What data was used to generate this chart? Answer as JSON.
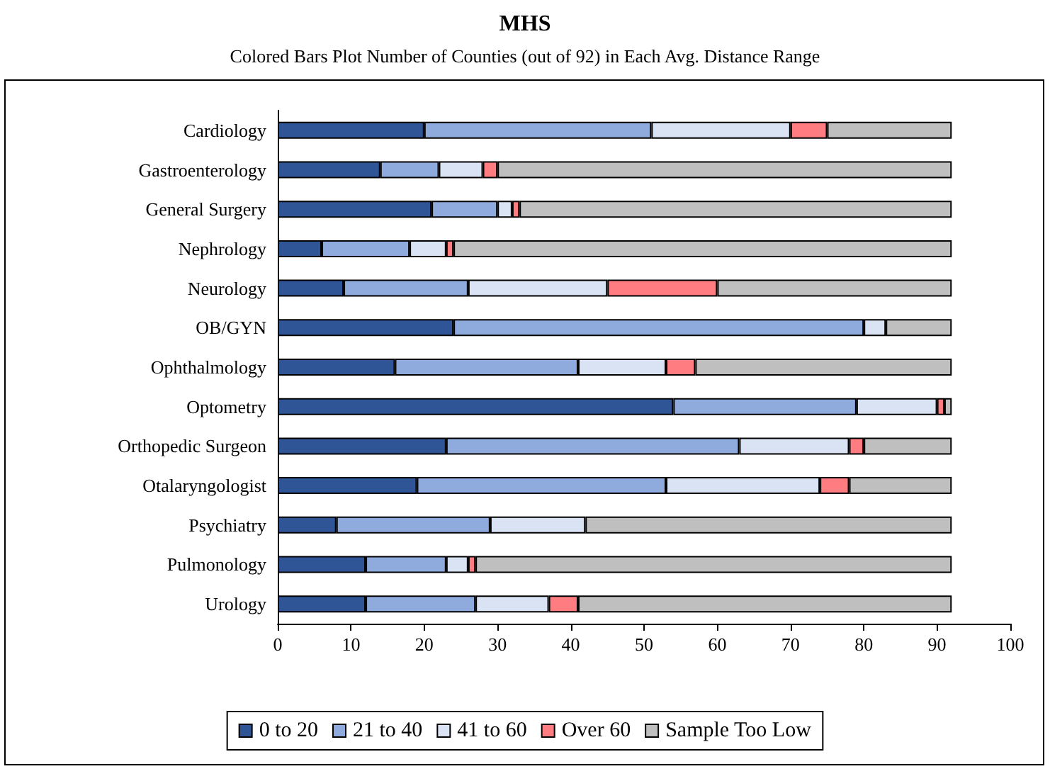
{
  "chart_data": {
    "type": "bar",
    "orientation": "horizontal",
    "stacked": true,
    "title": "MHS",
    "subtitle": "Colored Bars Plot Number of Counties (out of 92) in Each Avg. Distance Range",
    "categories": [
      "Cardiology",
      "Gastroenterology",
      "General Surgery",
      "Nephrology",
      "Neurology",
      "OB/GYN",
      "Ophthalmology",
      "Optometry",
      "Orthopedic Surgeon",
      "Otalaryngologist",
      "Psychiatry",
      "Pulmonology",
      "Urology"
    ],
    "series": [
      {
        "name": "0 to 20",
        "color": "#2f5597",
        "values": [
          20,
          14,
          21,
          6,
          9,
          24,
          16,
          54,
          23,
          19,
          8,
          12,
          12
        ]
      },
      {
        "name": "21 to 40",
        "color": "#8faadc",
        "values": [
          31,
          8,
          9,
          12,
          17,
          56,
          25,
          25,
          40,
          34,
          21,
          11,
          15
        ]
      },
      {
        "name": "41 to 60",
        "color": "#dae3f3",
        "values": [
          19,
          6,
          2,
          5,
          19,
          3,
          12,
          11,
          15,
          21,
          13,
          3,
          10
        ]
      },
      {
        "name": "Over 60",
        "color": "#ff7c80",
        "values": [
          5,
          2,
          1,
          1,
          15,
          0,
          4,
          1,
          2,
          4,
          0,
          1,
          4
        ]
      },
      {
        "name": "Sample Too Low",
        "color": "#bfbfbf",
        "values": [
          17,
          62,
          59,
          68,
          32,
          9,
          35,
          1,
          12,
          14,
          50,
          65,
          51
        ]
      }
    ],
    "xlim": [
      0,
      100
    ],
    "xticks": [
      0,
      10,
      20,
      30,
      40,
      50,
      60,
      70,
      80,
      90,
      100
    ],
    "grid": false,
    "legend": "bottom"
  }
}
